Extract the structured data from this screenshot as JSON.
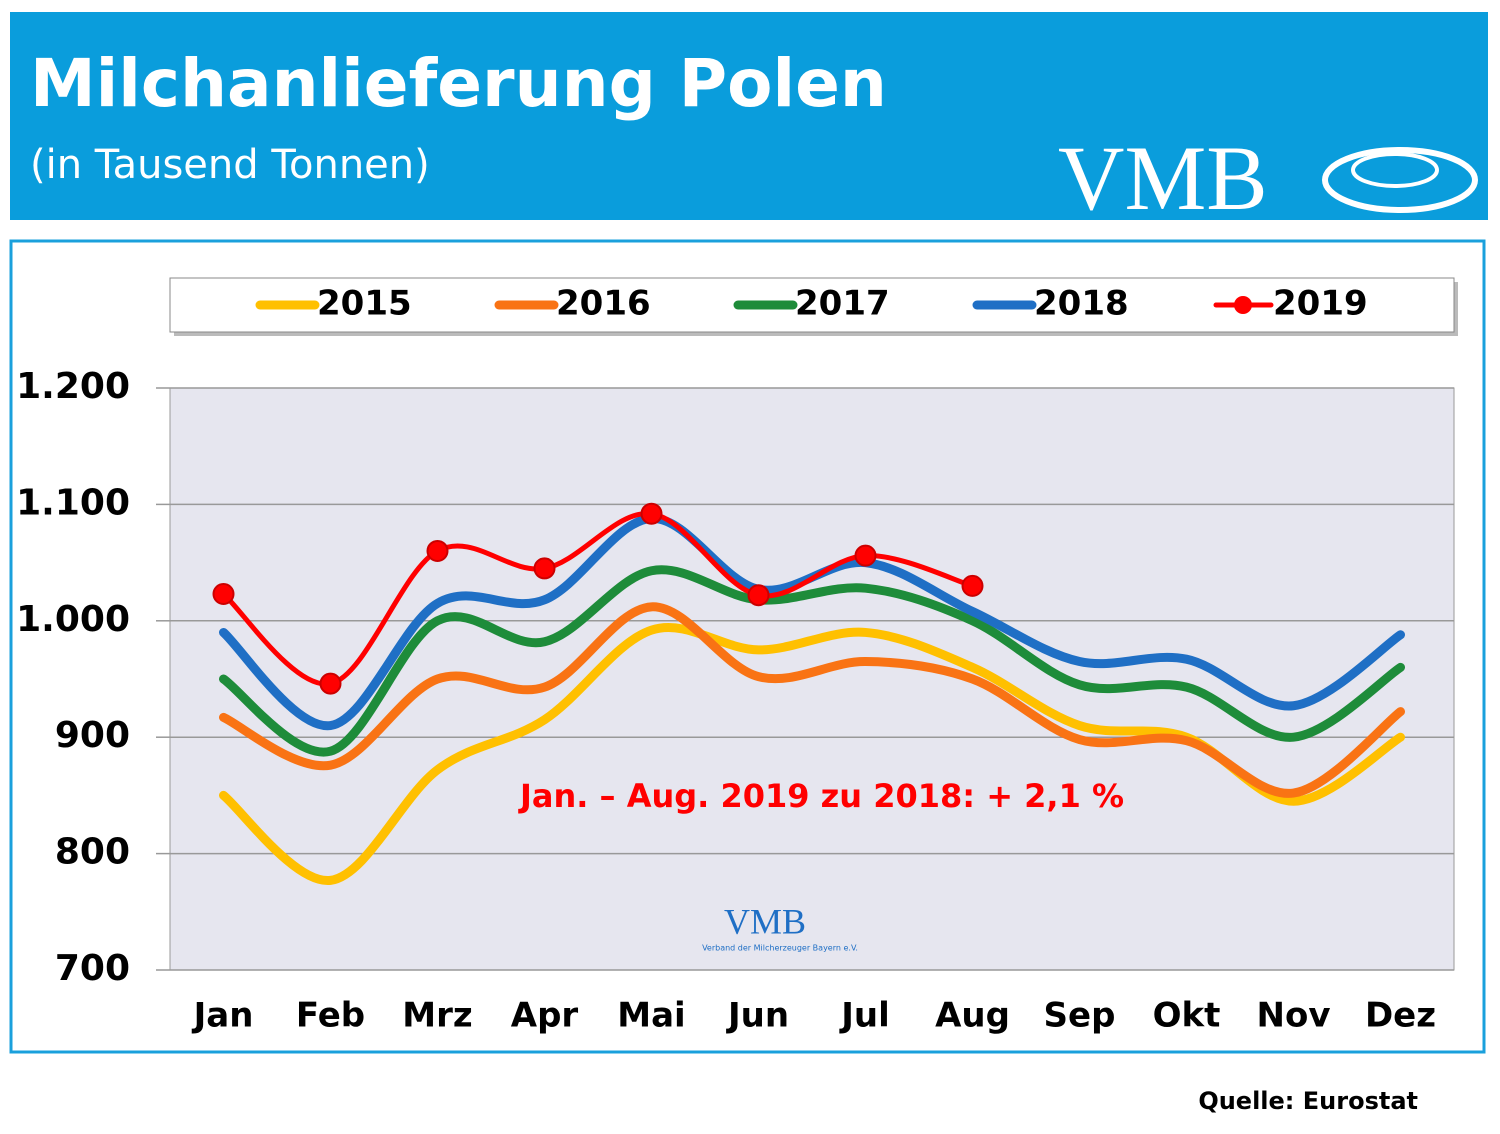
{
  "chart_data": {
    "type": "line",
    "title": "Milchanlieferung Polen",
    "subtitle": "(in Tausend Tonnen)",
    "logo": "VMB",
    "logo_caption": "Verband der Milcherzeuger Bayern e.V.",
    "annotation": "Jan. – Aug. 2019 zu 2018: + 2,1 %",
    "source": "Quelle: Eurostat",
    "categories": [
      "Jan",
      "Feb",
      "Mrz",
      "Apr",
      "Mai",
      "Jun",
      "Jul",
      "Aug",
      "Sep",
      "Okt",
      "Nov",
      "Dez"
    ],
    "series": [
      {
        "name": "2015",
        "color": "#ffc000",
        "values": [
          850,
          777,
          872,
          915,
          992,
          975,
          990,
          960,
          910,
          900,
          845,
          900
        ]
      },
      {
        "name": "2016",
        "color": "#f97314",
        "values": [
          917,
          876,
          950,
          943,
          1012,
          952,
          965,
          950,
          898,
          897,
          852,
          922
        ]
      },
      {
        "name": "2017",
        "color": "#1e8c3a",
        "values": [
          950,
          888,
          1000,
          982,
          1043,
          1018,
          1028,
          1000,
          945,
          943,
          900,
          960
        ]
      },
      {
        "name": "2018",
        "color": "#1f6fc5",
        "values": [
          990,
          910,
          1015,
          1018,
          1088,
          1027,
          1050,
          1008,
          965,
          967,
          927,
          988
        ]
      },
      {
        "name": "2019",
        "color": "#ff0000",
        "marker": true,
        "values": [
          1023,
          946,
          1060,
          1045,
          1092,
          1022,
          1056,
          1030,
          null,
          null,
          null,
          null
        ]
      }
    ],
    "ylim": [
      700,
      1200
    ],
    "yticks": [
      {
        "value": 700,
        "label": "700"
      },
      800,
      900,
      {
        "value": 1000,
        "label": "1.000"
      },
      {
        "value": 1100,
        "label": "1.100"
      },
      {
        "value": 1200,
        "label": "1.200"
      }
    ],
    "grid": true,
    "legend": "top"
  }
}
